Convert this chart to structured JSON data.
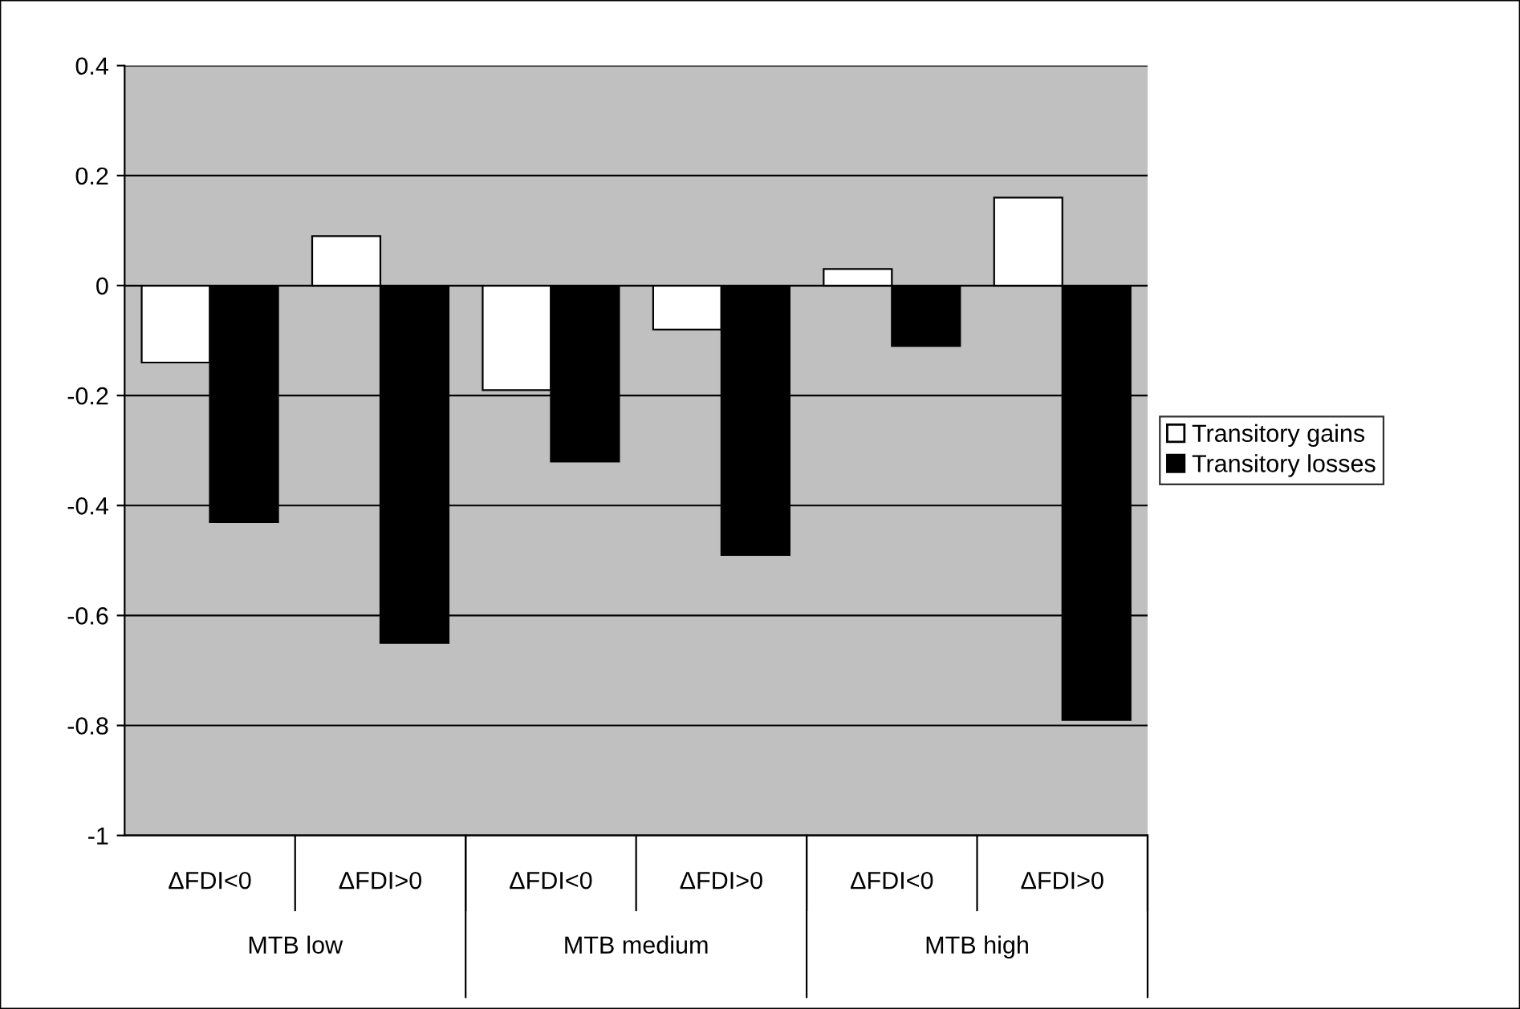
{
  "chart_data": {
    "type": "bar",
    "categories": [
      "ΔFDI<0",
      "ΔFDI>0",
      "ΔFDI<0",
      "ΔFDI>0",
      "ΔFDI<0",
      "ΔFDI>0"
    ],
    "series": [
      {
        "name": "Transitory gains",
        "color": "#ffffff",
        "values": [
          -0.14,
          0.09,
          -0.19,
          -0.08,
          0.03,
          0.16
        ]
      },
      {
        "name": "Transitory losses",
        "color": "#000000",
        "values": [
          -0.43,
          -0.65,
          -0.32,
          -0.49,
          -0.11,
          -0.79
        ]
      }
    ],
    "annotations": [
      "MTB low",
      "MTB medium",
      "MTB high"
    ],
    "ylim": [
      -1,
      0.4
    ],
    "yticks": [
      -1,
      -0.8,
      -0.6,
      -0.4,
      -0.2,
      0,
      0.2,
      0.4
    ],
    "grid": "y",
    "legend": "right"
  }
}
